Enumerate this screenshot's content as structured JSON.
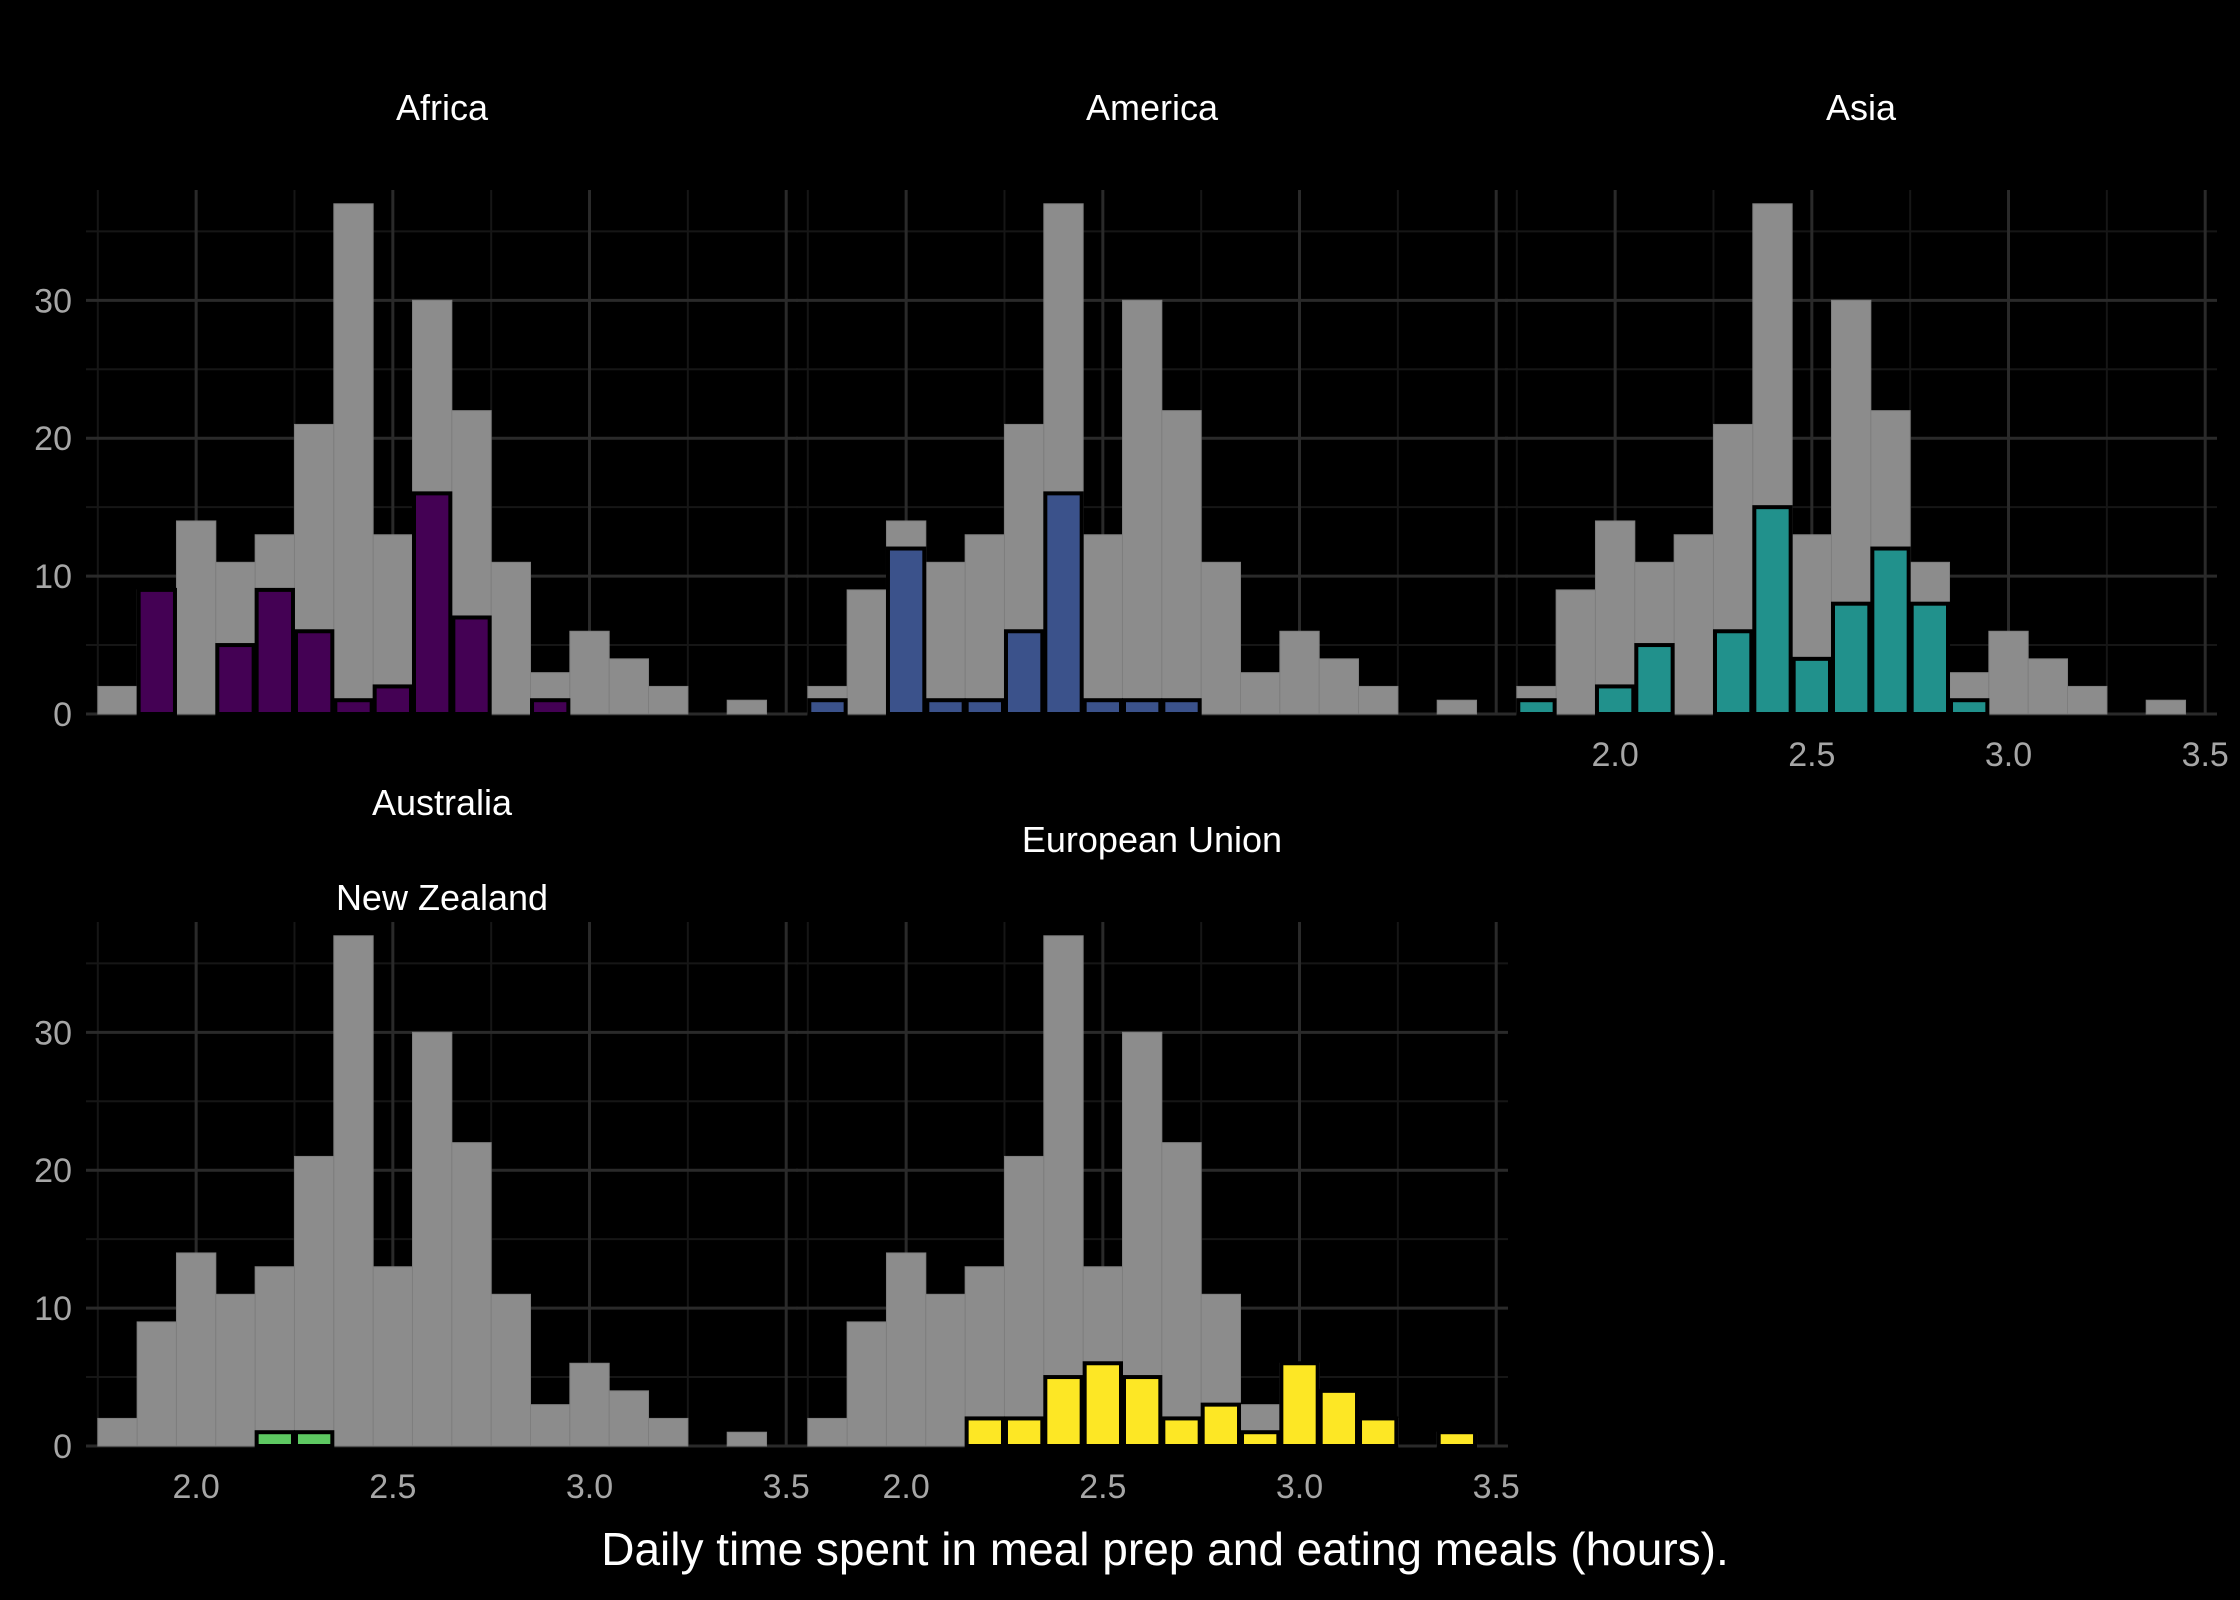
{
  "chart_data": {
    "type": "bar",
    "xlabel": "Daily time spent in meal prep and eating meals (hours).",
    "ylabel": "",
    "xlim": [
      1.72,
      3.53
    ],
    "ylim": [
      0,
      38
    ],
    "x_ticks": [
      "2.0",
      "2.5",
      "3.0",
      "3.5"
    ],
    "y_ticks": [
      "0",
      "10",
      "20",
      "30"
    ],
    "bin_width": 0.1,
    "bin_starts": [
      1.75,
      1.85,
      1.95,
      2.05,
      2.15,
      2.25,
      2.35,
      2.45,
      2.55,
      2.65,
      2.75,
      2.85,
      2.95,
      3.05,
      3.15,
      3.25,
      3.35
    ],
    "background_values": [
      2,
      9,
      14,
      11,
      13,
      21,
      37,
      13,
      30,
      22,
      11,
      3,
      6,
      4,
      2,
      0,
      1
    ],
    "background_color": "#8c8c8c",
    "grid": true,
    "series": [
      {
        "name": "Africa",
        "color": "#440154",
        "values": [
          0,
          9,
          0,
          5,
          9,
          6,
          1,
          2,
          16,
          7,
          0,
          1,
          0,
          0,
          0,
          0,
          0
        ]
      },
      {
        "name": "America",
        "color": "#3b528b",
        "values": [
          1,
          0,
          12,
          1,
          1,
          6,
          16,
          1,
          1,
          1,
          0,
          0,
          0,
          0,
          0,
          0,
          0
        ]
      },
      {
        "name": "Asia",
        "color": "#21918c",
        "values": [
          1,
          0,
          2,
          5,
          0,
          6,
          15,
          4,
          8,
          12,
          8,
          1,
          0,
          0,
          0,
          0,
          0
        ]
      },
      {
        "name": [
          "Australia",
          "New Zealand"
        ],
        "color": "#5ec962",
        "values": [
          0,
          0,
          0,
          0,
          1,
          1,
          0,
          0,
          0,
          0,
          0,
          0,
          0,
          0,
          0,
          0,
          0
        ]
      },
      {
        "name": "European Union",
        "color": "#fde725",
        "values": [
          0,
          0,
          0,
          0,
          2,
          2,
          5,
          6,
          5,
          2,
          3,
          1,
          6,
          4,
          2,
          0,
          1
        ]
      }
    ]
  }
}
